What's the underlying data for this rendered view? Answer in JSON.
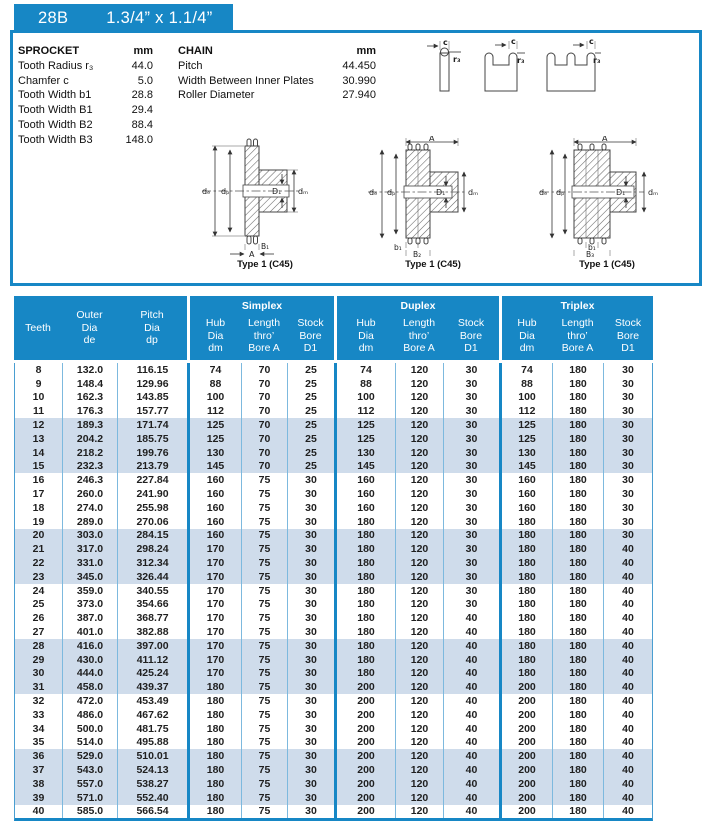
{
  "colors": {
    "accent": "#1787c5",
    "stripe": "#cfdceb"
  },
  "tab": {
    "code": "28B",
    "size": "1.3/4” x 1.1/4”"
  },
  "specs": {
    "sprocket": {
      "title": "SPROCKET",
      "unit": "mm",
      "rows": [
        {
          "label": "Tooth Radius r₃",
          "value": "44.0"
        },
        {
          "label": "Chamfer c",
          "value": "5.0"
        },
        {
          "label": "Tooth Width b1",
          "value": "28.8"
        },
        {
          "label": "Tooth Width B1",
          "value": "29.4"
        },
        {
          "label": "Tooth Width B2",
          "value": "88.4"
        },
        {
          "label": "Tooth Width B3",
          "value": "148.0"
        }
      ]
    },
    "chain": {
      "title": "CHAIN",
      "unit": "mm",
      "rows": [
        {
          "label": "Pitch",
          "value": "44.450"
        },
        {
          "label": "Width Between Inner Plates",
          "value": "30.990"
        },
        {
          "label": "Roller Diameter",
          "value": "27.940"
        }
      ]
    }
  },
  "profiles": {
    "c": "c",
    "r3": "r₃"
  },
  "diagrams": {
    "captions": [
      "Type 1 (C45)",
      "Type 1 (C45)",
      "Type 1 (C45)"
    ],
    "d1": {
      "de": "dₑ",
      "dp": "dₚ",
      "D1": "D₁",
      "dm": "dₘ",
      "B": "B₁",
      "A": "A"
    },
    "d2": {
      "de": "dₑ",
      "dp": "dₚ",
      "D1": "D₁",
      "dm": "dₘ",
      "b1": "b₁",
      "B": "B₂",
      "A": "A"
    },
    "d3": {
      "de": "dₑ",
      "dp": "dₚ",
      "D1": "D₁",
      "dm": "dₘ",
      "b1": "b₁",
      "B": "B₃",
      "A": "A"
    }
  },
  "table": {
    "col_teeth": "Teeth",
    "col_outer": "Outer\nDia\nde",
    "col_pitch": "Pitch\nDia\ndp",
    "groups": [
      {
        "title": "Simplex",
        "cols": [
          "Hub\nDia\ndm",
          "Length\nthro’\nBore A",
          "Stock\nBore\nD1"
        ]
      },
      {
        "title": "Duplex",
        "cols": [
          "Hub\nDia\ndm",
          "Length\nthro’\nBore A",
          "Stock\nBore\nD1"
        ]
      },
      {
        "title": "Triplex",
        "cols": [
          "Hub\nDia\ndm",
          "Length\nthro’\nBore A",
          "Stock\nBore\nD1"
        ]
      }
    ],
    "rows": [
      [
        "8",
        "132.0",
        "116.15",
        "74",
        "70",
        "25",
        "74",
        "120",
        "30",
        "74",
        "180",
        "30"
      ],
      [
        "9",
        "148.4",
        "129.96",
        "88",
        "70",
        "25",
        "88",
        "120",
        "30",
        "88",
        "180",
        "30"
      ],
      [
        "10",
        "162.3",
        "143.85",
        "100",
        "70",
        "25",
        "100",
        "120",
        "30",
        "100",
        "180",
        "30"
      ],
      [
        "11",
        "176.3",
        "157.77",
        "112",
        "70",
        "25",
        "112",
        "120",
        "30",
        "112",
        "180",
        "30"
      ],
      [
        "12",
        "189.3",
        "171.74",
        "125",
        "70",
        "25",
        "125",
        "120",
        "30",
        "125",
        "180",
        "30"
      ],
      [
        "13",
        "204.2",
        "185.75",
        "125",
        "70",
        "25",
        "125",
        "120",
        "30",
        "125",
        "180",
        "30"
      ],
      [
        "14",
        "218.2",
        "199.76",
        "130",
        "70",
        "25",
        "130",
        "120",
        "30",
        "130",
        "180",
        "30"
      ],
      [
        "15",
        "232.3",
        "213.79",
        "145",
        "70",
        "25",
        "145",
        "120",
        "30",
        "145",
        "180",
        "30"
      ],
      [
        "16",
        "246.3",
        "227.84",
        "160",
        "75",
        "30",
        "160",
        "120",
        "30",
        "160",
        "180",
        "30"
      ],
      [
        "17",
        "260.0",
        "241.90",
        "160",
        "75",
        "30",
        "160",
        "120",
        "30",
        "160",
        "180",
        "30"
      ],
      [
        "18",
        "274.0",
        "255.98",
        "160",
        "75",
        "30",
        "160",
        "120",
        "30",
        "160",
        "180",
        "30"
      ],
      [
        "19",
        "289.0",
        "270.06",
        "160",
        "75",
        "30",
        "180",
        "120",
        "30",
        "180",
        "180",
        "30"
      ],
      [
        "20",
        "303.0",
        "284.15",
        "160",
        "75",
        "30",
        "180",
        "120",
        "30",
        "180",
        "180",
        "30"
      ],
      [
        "21",
        "317.0",
        "298.24",
        "170",
        "75",
        "30",
        "180",
        "120",
        "30",
        "180",
        "180",
        "40"
      ],
      [
        "22",
        "331.0",
        "312.34",
        "170",
        "75",
        "30",
        "180",
        "120",
        "30",
        "180",
        "180",
        "40"
      ],
      [
        "23",
        "345.0",
        "326.44",
        "170",
        "75",
        "30",
        "180",
        "120",
        "30",
        "180",
        "180",
        "40"
      ],
      [
        "24",
        "359.0",
        "340.55",
        "170",
        "75",
        "30",
        "180",
        "120",
        "30",
        "180",
        "180",
        "40"
      ],
      [
        "25",
        "373.0",
        "354.66",
        "170",
        "75",
        "30",
        "180",
        "120",
        "30",
        "180",
        "180",
        "40"
      ],
      [
        "26",
        "387.0",
        "368.77",
        "170",
        "75",
        "30",
        "180",
        "120",
        "40",
        "180",
        "180",
        "40"
      ],
      [
        "27",
        "401.0",
        "382.88",
        "170",
        "75",
        "30",
        "180",
        "120",
        "40",
        "180",
        "180",
        "40"
      ],
      [
        "28",
        "416.0",
        "397.00",
        "170",
        "75",
        "30",
        "180",
        "120",
        "40",
        "180",
        "180",
        "40"
      ],
      [
        "29",
        "430.0",
        "411.12",
        "170",
        "75",
        "30",
        "180",
        "120",
        "40",
        "180",
        "180",
        "40"
      ],
      [
        "30",
        "444.0",
        "425.24",
        "170",
        "75",
        "30",
        "180",
        "120",
        "40",
        "180",
        "180",
        "40"
      ],
      [
        "31",
        "458.0",
        "439.37",
        "180",
        "75",
        "30",
        "200",
        "120",
        "40",
        "200",
        "180",
        "40"
      ],
      [
        "32",
        "472.0",
        "453.49",
        "180",
        "75",
        "30",
        "200",
        "120",
        "40",
        "200",
        "180",
        "40"
      ],
      [
        "33",
        "486.0",
        "467.62",
        "180",
        "75",
        "30",
        "200",
        "120",
        "40",
        "200",
        "180",
        "40"
      ],
      [
        "34",
        "500.0",
        "481.75",
        "180",
        "75",
        "30",
        "200",
        "120",
        "40",
        "200",
        "180",
        "40"
      ],
      [
        "35",
        "514.0",
        "495.88",
        "180",
        "75",
        "30",
        "200",
        "120",
        "40",
        "200",
        "180",
        "40"
      ],
      [
        "36",
        "529.0",
        "510.01",
        "180",
        "75",
        "30",
        "200",
        "120",
        "40",
        "200",
        "180",
        "40"
      ],
      [
        "37",
        "543.0",
        "524.13",
        "180",
        "75",
        "30",
        "200",
        "120",
        "40",
        "200",
        "180",
        "40"
      ],
      [
        "38",
        "557.0",
        "538.27",
        "180",
        "75",
        "30",
        "200",
        "120",
        "40",
        "200",
        "180",
        "40"
      ],
      [
        "39",
        "571.0",
        "552.40",
        "180",
        "75",
        "30",
        "200",
        "120",
        "40",
        "200",
        "180",
        "40"
      ],
      [
        "40",
        "585.0",
        "566.54",
        "180",
        "75",
        "30",
        "200",
        "120",
        "40",
        "200",
        "180",
        "40"
      ]
    ]
  }
}
